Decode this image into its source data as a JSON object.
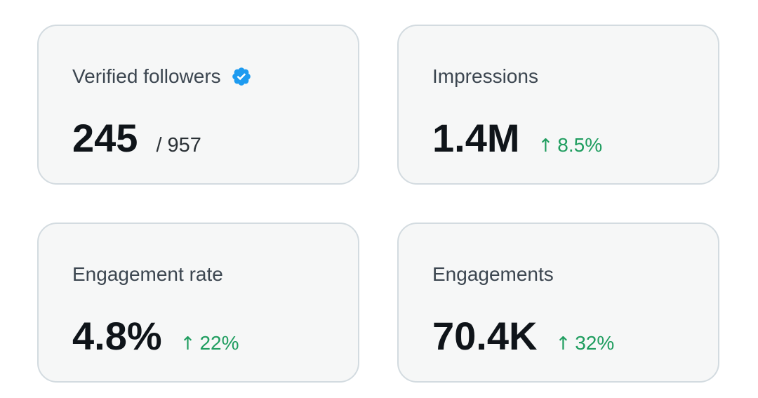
{
  "cards": {
    "verified_followers": {
      "label": "Verified followers",
      "value": "245",
      "total": "/ 957",
      "badge_icon": "verified-badge-icon",
      "badge_color": "#1d9bf0"
    },
    "impressions": {
      "label": "Impressions",
      "value": "1.4M",
      "delta_arrow": "↑",
      "delta": "8.5%"
    },
    "engagement_rate": {
      "label": "Engagement rate",
      "value": "4.8%",
      "delta_arrow": "↑",
      "delta": "22%"
    },
    "engagements": {
      "label": "Engagements",
      "value": "70.4K",
      "delta_arrow": "↑",
      "delta": "32%"
    }
  },
  "colors": {
    "card_background": "#f6f7f7",
    "card_border": "#d3dbe0",
    "value_text": "#0f1419",
    "label_text": "#3c4650",
    "positive_delta": "#1f9d5f"
  }
}
